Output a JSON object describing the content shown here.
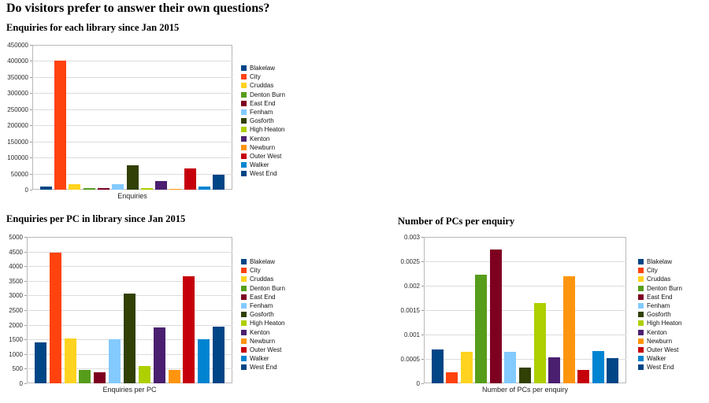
{
  "page": {
    "title": "Do visitors prefer to answer their own questions?"
  },
  "palette": [
    "#004586",
    "#FF420E",
    "#FFD320",
    "#579D1C",
    "#7E0021",
    "#83CAFF",
    "#314004",
    "#AECF00",
    "#4B1F6F",
    "#FF950E",
    "#C5000B",
    "#0084D1",
    "#004586"
  ],
  "libraries": [
    "Blakelaw",
    "City",
    "Cruddas",
    "Denton Burn",
    "East End",
    "Fenham",
    "Gosforth",
    "High Heaton",
    "Kenton",
    "Newburn",
    "Outer West",
    "Walker",
    "West End"
  ],
  "chart_data": [
    {
      "type": "bar",
      "title": "Enquiries for each library since Jan 2015",
      "xlabel": "Enquiries",
      "ylabel": "",
      "ylim": [
        0,
        450000
      ],
      "yticks": [
        "450000",
        "400000",
        "350000",
        "300000",
        "250000",
        "200000",
        "150000",
        "100000",
        "50000",
        "0"
      ],
      "grid": true,
      "legend_position": "right",
      "categories": [
        "Blakelaw",
        "City",
        "Cruddas",
        "Denton Burn",
        "East End",
        "Fenham",
        "Gosforth",
        "High Heaton",
        "Kenton",
        "Newburn",
        "Outer West",
        "Walker",
        "West End"
      ],
      "values": [
        11000,
        402000,
        18000,
        4000,
        5000,
        18000,
        75000,
        6000,
        27000,
        3500,
        66000,
        11000,
        47000
      ]
    },
    {
      "type": "bar",
      "title": "Enquiries per PC in library since Jan 2015",
      "xlabel": "Enquiries per PC",
      "ylabel": "",
      "ylim": [
        0,
        5000
      ],
      "yticks": [
        "5000",
        "4500",
        "4000",
        "3500",
        "3000",
        "2500",
        "2000",
        "1500",
        "1000",
        "500",
        "0"
      ],
      "grid": true,
      "legend_position": "right",
      "categories": [
        "Blakelaw",
        "City",
        "Cruddas",
        "Denton Burn",
        "East End",
        "Fenham",
        "Gosforth",
        "High Heaton",
        "Kenton",
        "Newburn",
        "Outer West",
        "Walker",
        "West End"
      ],
      "values": [
        1400,
        4450,
        1520,
        450,
        370,
        1510,
        3060,
        600,
        1900,
        470,
        3660,
        1500,
        1940
      ]
    },
    {
      "type": "bar",
      "title": "Number of PCs per enquiry",
      "xlabel": "Number of PCs per enquiry",
      "ylabel": "",
      "ylim": [
        0,
        0.003
      ],
      "yticks": [
        "0.003",
        "0.0025",
        "0.002",
        "0.0015",
        "0.001",
        "0.0005",
        "0"
      ],
      "grid": true,
      "legend_position": "right",
      "categories": [
        "Blakelaw",
        "City",
        "Cruddas",
        "Denton Burn",
        "East End",
        "Fenham",
        "Gosforth",
        "High Heaton",
        "Kenton",
        "Newburn",
        "Outer West",
        "Walker",
        "West End"
      ],
      "values": [
        0.0007,
        0.00022,
        0.00065,
        0.00222,
        0.00274,
        0.00065,
        0.00033,
        0.00165,
        0.00053,
        0.0022,
        0.00028,
        0.00066,
        0.00052
      ]
    }
  ]
}
